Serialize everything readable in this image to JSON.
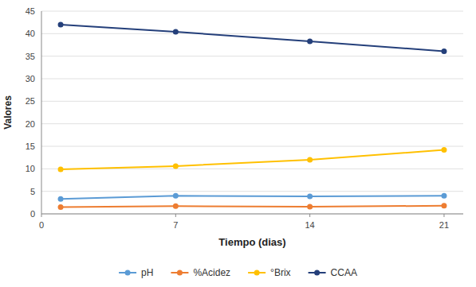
{
  "chart_data": {
    "type": "line",
    "x": [
      1,
      7,
      14,
      21
    ],
    "series": [
      {
        "name": "pH",
        "color": "#5b9bd5",
        "values": [
          3.3,
          4.0,
          3.9,
          4.0
        ],
        "marker": "circle",
        "line_style": "solid"
      },
      {
        "name": "%Acidez",
        "color": "#ed7d31",
        "values": [
          1.5,
          1.7,
          1.6,
          1.8
        ],
        "marker": "circle",
        "line_style": "solid"
      },
      {
        "name": "°Brix",
        "color": "#ffc000",
        "values": [
          9.9,
          10.6,
          12.0,
          14.2
        ],
        "marker": "circle",
        "line_style": "solid"
      },
      {
        "name": "CCAA",
        "color": "#243f7a",
        "values": [
          42.0,
          40.4,
          38.3,
          36.1
        ],
        "marker": "circle",
        "line_style": "solid"
      }
    ],
    "xlabel": "Tiempo (dias)",
    "ylabel": "Valores",
    "xlim": [
      0,
      22
    ],
    "xticks": [
      0,
      7,
      14,
      21
    ],
    "ylim": [
      0,
      45
    ],
    "yticks": [
      0,
      5,
      10,
      15,
      20,
      25,
      30,
      35,
      40,
      45
    ],
    "grid": true,
    "legend": "bottom"
  }
}
